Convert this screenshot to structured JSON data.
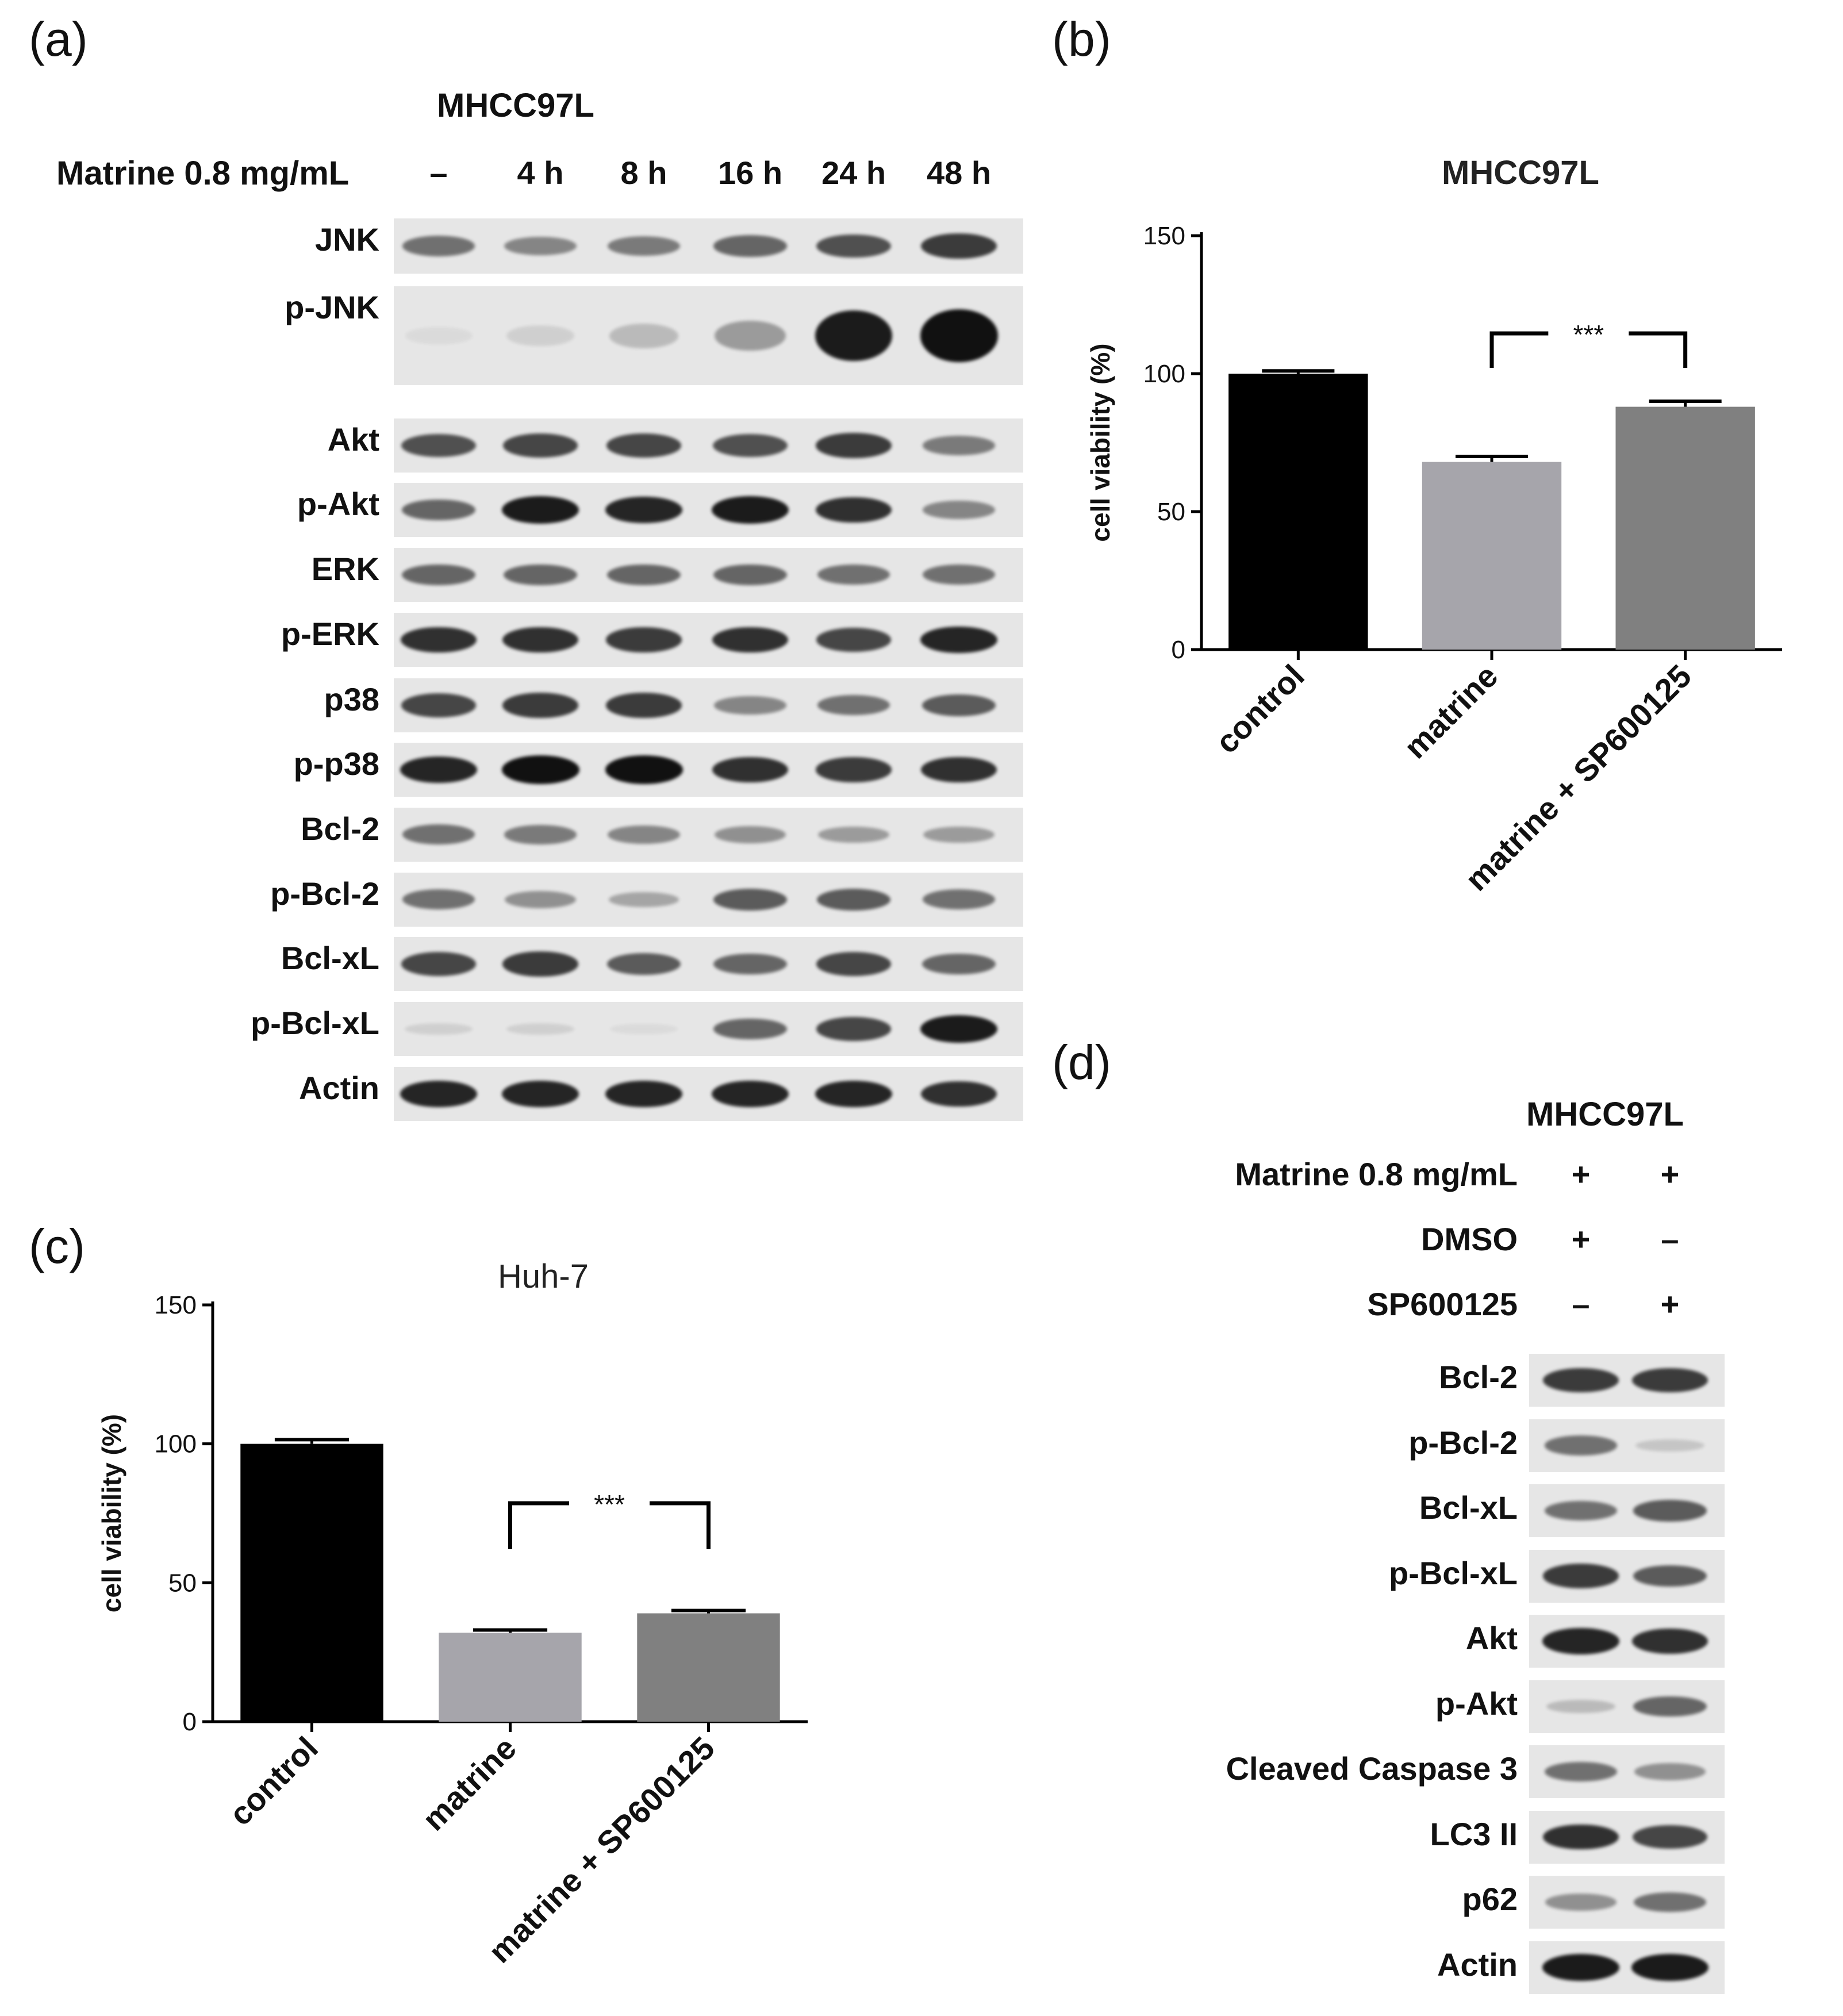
{
  "panels": {
    "a": {
      "panel_label": "(a)",
      "cell_line": "MHCC97L",
      "treatment_label": "Matrine 0.8 mg/mL",
      "timepoints": [
        "–",
        "4 h",
        "8 h",
        "16 h",
        "24 h",
        "48 h"
      ],
      "blots": [
        {
          "label": "JNK",
          "intensity": [
            0.55,
            0.45,
            0.5,
            0.6,
            0.7,
            0.8
          ]
        },
        {
          "label": "p-JNK",
          "intensity": [
            0.0,
            0.1,
            0.2,
            0.35,
            0.95,
            1.0
          ]
        },
        {
          "label": "Akt",
          "intensity": [
            0.7,
            0.75,
            0.75,
            0.7,
            0.8,
            0.5
          ]
        },
        {
          "label": "p-Akt",
          "intensity": [
            0.6,
            0.95,
            0.9,
            0.95,
            0.85,
            0.45
          ]
        },
        {
          "label": "ERK",
          "intensity": [
            0.6,
            0.6,
            0.6,
            0.6,
            0.55,
            0.55
          ]
        },
        {
          "label": "p-ERK",
          "intensity": [
            0.85,
            0.85,
            0.8,
            0.85,
            0.75,
            0.9
          ]
        },
        {
          "label": "p38",
          "intensity": [
            0.75,
            0.8,
            0.8,
            0.45,
            0.55,
            0.65
          ]
        },
        {
          "label": "p-p38",
          "intensity": [
            0.9,
            1.0,
            1.0,
            0.85,
            0.8,
            0.85
          ]
        },
        {
          "label": "Bcl-2",
          "intensity": [
            0.55,
            0.5,
            0.45,
            0.4,
            0.35,
            0.35
          ]
        },
        {
          "label": "p-Bcl-2",
          "intensity": [
            0.55,
            0.4,
            0.3,
            0.65,
            0.65,
            0.55
          ]
        },
        {
          "label": "Bcl-xL",
          "intensity": [
            0.75,
            0.8,
            0.65,
            0.6,
            0.75,
            0.6
          ]
        },
        {
          "label": "p-Bcl-xL",
          "intensity": [
            0.1,
            0.1,
            0.05,
            0.6,
            0.75,
            0.95
          ]
        },
        {
          "label": "Actin",
          "intensity": [
            0.9,
            0.9,
            0.9,
            0.9,
            0.9,
            0.85
          ]
        }
      ]
    },
    "b": {
      "panel_label": "(b)"
    },
    "c": {
      "panel_label": "(c)"
    },
    "d": {
      "panel_label": "(d)",
      "cell_line": "MHCC97L",
      "conditions": [
        {
          "label": "Matrine 0.8 mg/mL",
          "values": [
            "+",
            "+"
          ]
        },
        {
          "label": "DMSO",
          "values": [
            "+",
            "–"
          ]
        },
        {
          "label": "SP600125",
          "values": [
            "–",
            "+"
          ]
        }
      ],
      "blots": [
        {
          "label": "Bcl-2",
          "intensity": [
            0.8,
            0.8
          ]
        },
        {
          "label": "p-Bcl-2",
          "intensity": [
            0.55,
            0.15
          ]
        },
        {
          "label": "Bcl-xL",
          "intensity": [
            0.55,
            0.65
          ]
        },
        {
          "label": "p-Bcl-xL",
          "intensity": [
            0.8,
            0.65
          ]
        },
        {
          "label": "Akt",
          "intensity": [
            0.9,
            0.85
          ]
        },
        {
          "label": "p-Akt",
          "intensity": [
            0.2,
            0.6
          ]
        },
        {
          "label": "Cleaved Caspase 3",
          "intensity": [
            0.55,
            0.4
          ]
        },
        {
          "label": "LC3 II",
          "intensity": [
            0.85,
            0.75
          ]
        },
        {
          "label": "p62",
          "intensity": [
            0.4,
            0.55
          ]
        },
        {
          "label": "Actin",
          "intensity": [
            0.95,
            0.95
          ]
        }
      ]
    }
  },
  "chart_data": [
    {
      "type": "bar",
      "title": "MHCC97L",
      "ylabel": "cell viability (%)",
      "xlabel": "",
      "categories": [
        "control",
        "matrine",
        "matrine + SP600125"
      ],
      "values": [
        100,
        68,
        88
      ],
      "errors": [
        1,
        2,
        2
      ],
      "colors": [
        "#000000",
        "#a6a5ab",
        "#808080"
      ],
      "ylim": [
        0,
        150
      ],
      "yticks": [
        0,
        50,
        100,
        150
      ],
      "significance": {
        "between": [
          1,
          2
        ],
        "label": "***"
      }
    },
    {
      "type": "bar",
      "title": "Huh-7",
      "ylabel": "cell viability (%)",
      "xlabel": "",
      "categories": [
        "control",
        "matrine",
        "matrine + SP600125"
      ],
      "values": [
        100,
        32,
        39
      ],
      "errors": [
        1.5,
        1,
        1
      ],
      "colors": [
        "#000000",
        "#a6a5ab",
        "#808080"
      ],
      "ylim": [
        0,
        150
      ],
      "yticks": [
        0,
        50,
        100,
        150
      ],
      "significance": {
        "between": [
          1,
          2
        ],
        "label": "***"
      }
    }
  ]
}
